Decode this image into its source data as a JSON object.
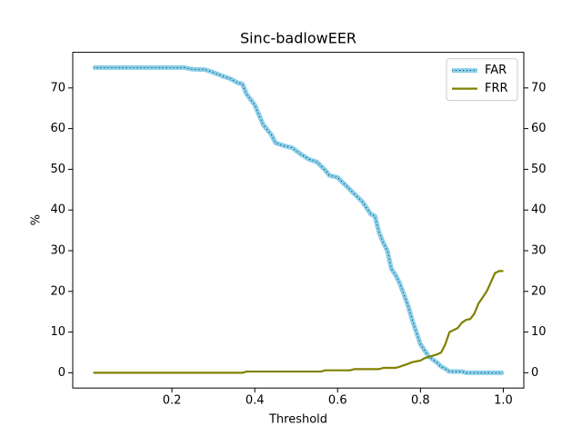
{
  "chart_data": {
    "type": "line",
    "title": "Sinc-badlowEER",
    "xlabel": "Threshold",
    "ylabel": "%",
    "x": [
      0.01,
      0.05,
      0.1,
      0.15,
      0.2,
      0.23,
      0.25,
      0.28,
      0.3,
      0.32,
      0.34,
      0.36,
      0.37,
      0.38,
      0.4,
      0.42,
      0.44,
      0.45,
      0.47,
      0.49,
      0.51,
      0.53,
      0.55,
      0.56,
      0.57,
      0.58,
      0.6,
      0.62,
      0.63,
      0.64,
      0.66,
      0.68,
      0.69,
      0.7,
      0.71,
      0.72,
      0.73,
      0.74,
      0.75,
      0.77,
      0.78,
      0.8,
      0.81,
      0.82,
      0.84,
      0.85,
      0.86,
      0.87,
      0.89,
      0.9,
      0.91,
      0.92,
      0.93,
      0.94,
      0.96,
      0.98,
      0.99,
      1.0
    ],
    "series": [
      {
        "name": "FAR",
        "color": "#87ceeb",
        "values": [
          75,
          75,
          75,
          75,
          75,
          75,
          74.6,
          74.5,
          73.8,
          73,
          72.3,
          71.2,
          71,
          68.5,
          65.8,
          61,
          58.5,
          56.5,
          55.8,
          55.3,
          53.8,
          52.5,
          51.8,
          50.8,
          49.8,
          48.5,
          48,
          46,
          45,
          44,
          42,
          39,
          38.5,
          34.5,
          32,
          30,
          25.5,
          24,
          22,
          16.5,
          13,
          7,
          5.5,
          4,
          2.5,
          1.5,
          1,
          0.3,
          0.3,
          0.3,
          0,
          0,
          0,
          0,
          0,
          0,
          0,
          0
        ]
      },
      {
        "name": "FRR",
        "color": "#808000",
        "values": [
          0,
          0,
          0,
          0,
          0,
          0,
          0,
          0,
          0,
          0,
          0,
          0,
          0,
          0.3,
          0.3,
          0.3,
          0.3,
          0.3,
          0.3,
          0.3,
          0.3,
          0.3,
          0.3,
          0.3,
          0.6,
          0.6,
          0.6,
          0.6,
          0.6,
          0.9,
          0.9,
          0.9,
          0.9,
          0.9,
          1.2,
          1.2,
          1.2,
          1.2,
          1.5,
          2.2,
          2.6,
          3,
          3.6,
          3.9,
          4.5,
          5,
          7,
          10,
          11,
          12.3,
          13,
          13.2,
          14.5,
          17,
          20,
          24.5,
          25,
          25
        ]
      }
    ],
    "xlim": [
      -0.0395,
      1.0495
    ],
    "xticks": [
      0.2,
      0.4,
      0.6,
      0.8,
      {
        "value": 1,
        "label": "1.0"
      }
    ],
    "ylim": [
      -3.75,
      78.75
    ],
    "yticks": [
      0,
      10,
      20,
      30,
      40,
      50,
      60,
      70
    ],
    "y2lim": [
      -3.75,
      78.75
    ],
    "y2ticks": [
      0,
      10,
      20,
      30,
      40,
      50,
      60,
      70
    ],
    "legend": "upper right"
  }
}
